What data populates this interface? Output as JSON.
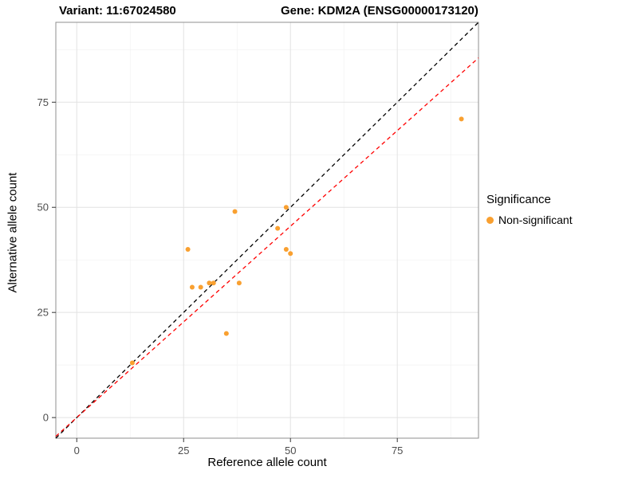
{
  "chart_data": {
    "type": "scatter",
    "title_left": "Variant: 11:67024580",
    "title_right": "Gene: KDM2A (ENSG00000173120)",
    "xlabel": "Reference allele count",
    "ylabel": "Alternative allele count",
    "xlim": [
      -4.9,
      94
    ],
    "ylim": [
      -4.9,
      94
    ],
    "xticks": [
      0,
      25,
      50,
      75
    ],
    "yticks": [
      0,
      25,
      50,
      75
    ],
    "minor_ticks": [
      12.5,
      37.5,
      62.5,
      87.5
    ],
    "grid": "on",
    "grid_major_color": "#e2e2e2",
    "grid_minor_color": "#f1f1f1",
    "panel_border_color": "#8f8f8f",
    "tick_color": "#4d4d4d",
    "tick_mark_color": "#333333",
    "point_color": "#F9A030",
    "points": [
      [
        13,
        13
      ],
      [
        26,
        40
      ],
      [
        27,
        31
      ],
      [
        29,
        31
      ],
      [
        31,
        32
      ],
      [
        32,
        32
      ],
      [
        35,
        20
      ],
      [
        37,
        49
      ],
      [
        38,
        32
      ],
      [
        47,
        45
      ],
      [
        49,
        50
      ],
      [
        49,
        40
      ],
      [
        50,
        39
      ],
      [
        90,
        71
      ]
    ],
    "lines": [
      {
        "name": "identity-line",
        "slope": 1,
        "intercept": 0,
        "color": "#000000",
        "dash": "5 4"
      },
      {
        "name": "regression-line",
        "slope": 0.91,
        "intercept": 0,
        "color": "#FF0000",
        "dash": "5 4"
      }
    ],
    "legend": {
      "title": "Significance",
      "items": [
        {
          "label": "Non-significant",
          "color": "#F9A030"
        }
      ]
    }
  }
}
